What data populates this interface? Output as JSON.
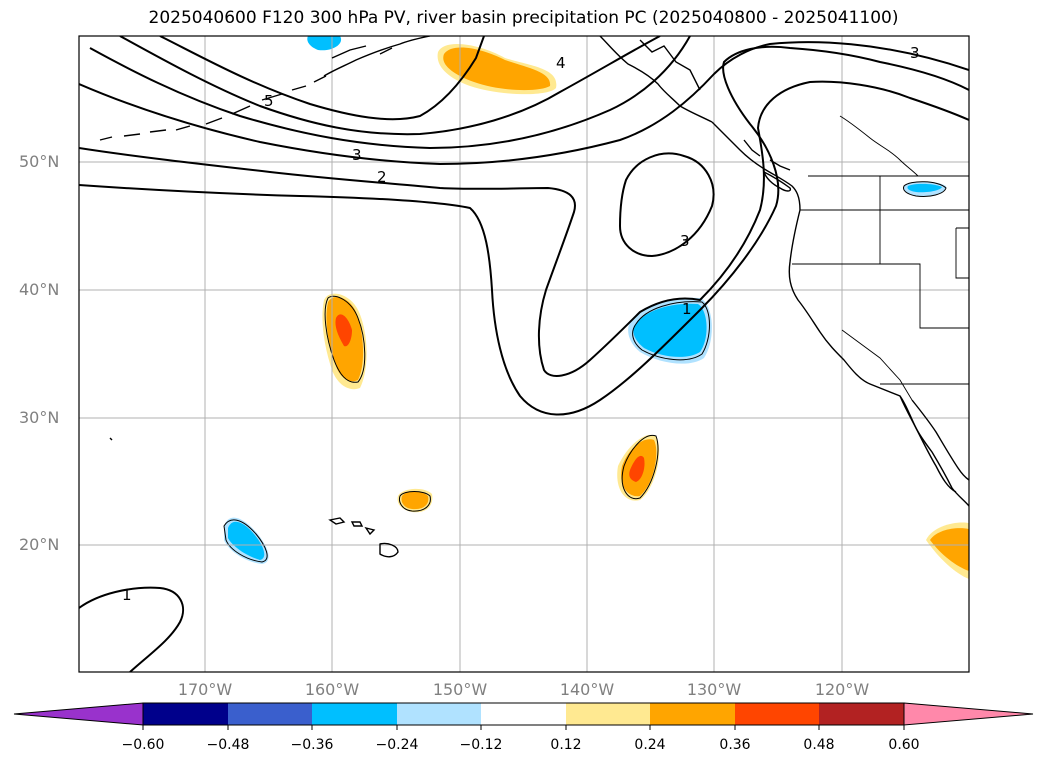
{
  "title": "2025040600 F120 300 hPa PV, river basin precipitation PC (2025040800 - 2025041100)",
  "lat_labels": [
    "50°N",
    "40°N",
    "30°N",
    "20°N"
  ],
  "lon_labels": [
    "170°W",
    "160°W",
    "150°W",
    "140°W",
    "130°W",
    "120°W"
  ],
  "contour_labels": [
    "5",
    "4",
    "3",
    "2",
    "3",
    "3",
    "1",
    "1"
  ],
  "colorbar": {
    "ticks": [
      "−0.60",
      "−0.48",
      "−0.36",
      "−0.24",
      "−0.12",
      "0.12",
      "0.24",
      "0.36",
      "0.48",
      "0.60"
    ],
    "colors": [
      "#9932cc",
      "#00008b",
      "#3a5fcd",
      "#00bfff",
      "#b0e2ff",
      "#ffffff",
      "#ffe991",
      "#ffa500",
      "#ff4500",
      "#b22222",
      "#ff88aa"
    ]
  }
}
